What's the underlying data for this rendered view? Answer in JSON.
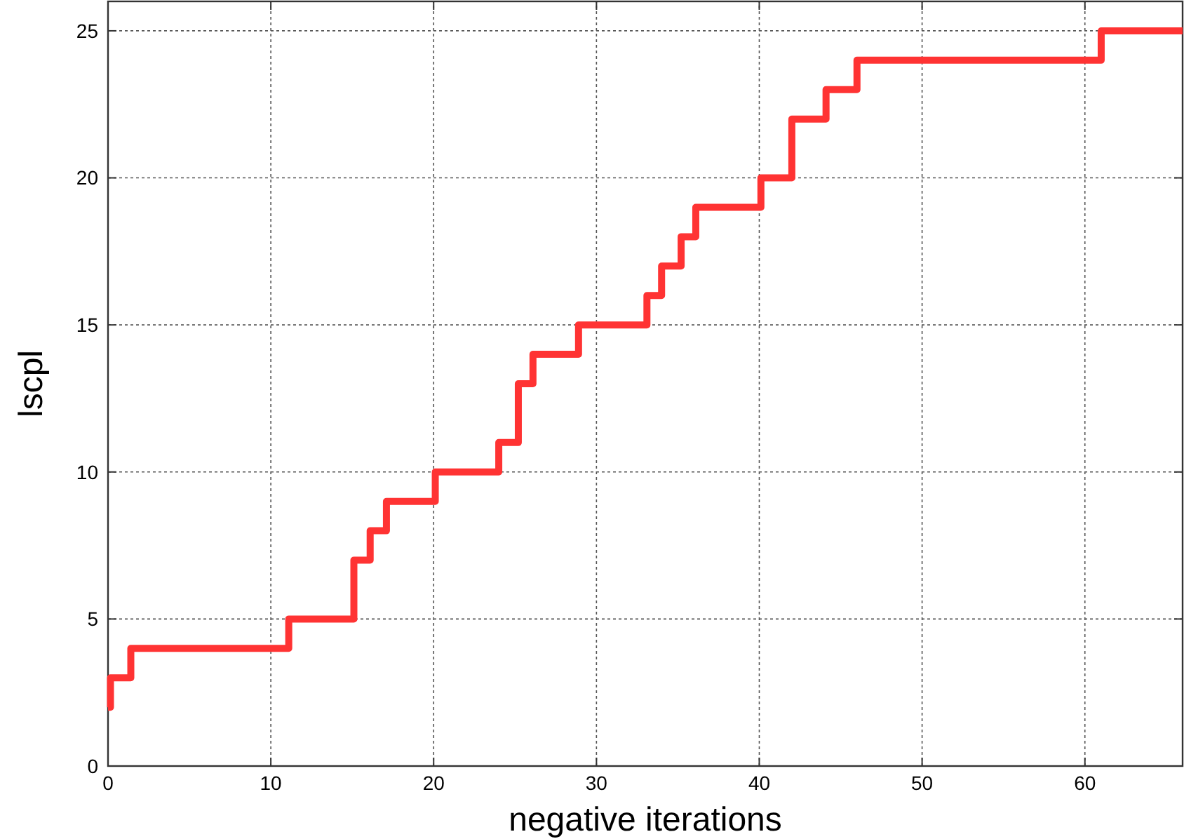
{
  "chart_data": {
    "type": "step",
    "xlabel": "negative iterations",
    "ylabel": "lscpl",
    "xlim": [
      0,
      66
    ],
    "ylim": [
      0,
      26
    ],
    "xticks": [
      0,
      10,
      20,
      30,
      40,
      50,
      60
    ],
    "yticks": [
      0,
      5,
      10,
      15,
      20,
      25
    ],
    "grid": true,
    "marker": "none",
    "line_style": "solid",
    "series": [
      {
        "color": "#ff3333",
        "x": [
          0,
          0.15,
          1.4,
          11.1,
          15.1,
          16.1,
          17.1,
          20.1,
          24.0,
          25.2,
          26.1,
          28.9,
          33.1,
          34.0,
          35.2,
          36.1,
          40.1,
          42.0,
          44.1,
          46.0,
          61.0,
          66
        ],
        "values": [
          2,
          3,
          4,
          5,
          7,
          8,
          9,
          10,
          11,
          13,
          14,
          15,
          16,
          17,
          18,
          19,
          20,
          22,
          23,
          24,
          25,
          25
        ]
      }
    ]
  }
}
